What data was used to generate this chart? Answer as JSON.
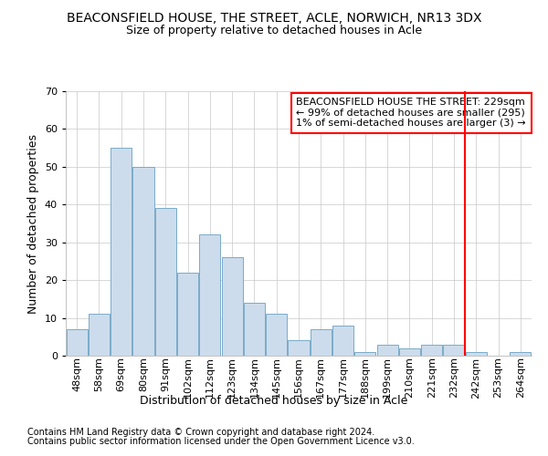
{
  "title": "BEACONSFIELD HOUSE, THE STREET, ACLE, NORWICH, NR13 3DX",
  "subtitle": "Size of property relative to detached houses in Acle",
  "xlabel": "Distribution of detached houses by size in Acle",
  "ylabel": "Number of detached properties",
  "categories": [
    "48sqm",
    "58sqm",
    "69sqm",
    "80sqm",
    "91sqm",
    "102sqm",
    "112sqm",
    "123sqm",
    "134sqm",
    "145sqm",
    "156sqm",
    "167sqm",
    "177sqm",
    "188sqm",
    "199sqm",
    "210sqm",
    "221sqm",
    "232sqm",
    "242sqm",
    "253sqm",
    "264sqm"
  ],
  "values": [
    7,
    11,
    55,
    50,
    39,
    22,
    32,
    26,
    14,
    11,
    4,
    7,
    8,
    1,
    3,
    2,
    3,
    3,
    1,
    0,
    1
  ],
  "bar_color": "#ccdcec",
  "bar_edge_color": "#7aaac8",
  "red_line_x": 17.5,
  "ylim": [
    0,
    70
  ],
  "yticks": [
    0,
    10,
    20,
    30,
    40,
    50,
    60,
    70
  ],
  "annotation_text": "BEACONSFIELD HOUSE THE STREET: 229sqm\n← 99% of detached houses are smaller (295)\n1% of semi-detached houses are larger (3) →",
  "footnote1": "Contains HM Land Registry data © Crown copyright and database right 2024.",
  "footnote2": "Contains public sector information licensed under the Open Government Licence v3.0.",
  "background_color": "#ffffff",
  "grid_color": "#c8c8c8",
  "title_fontsize": 10,
  "subtitle_fontsize": 9,
  "tick_fontsize": 8,
  "ylabel_fontsize": 9,
  "xlabel_fontsize": 9,
  "annotation_fontsize": 8,
  "footnote_fontsize": 7
}
